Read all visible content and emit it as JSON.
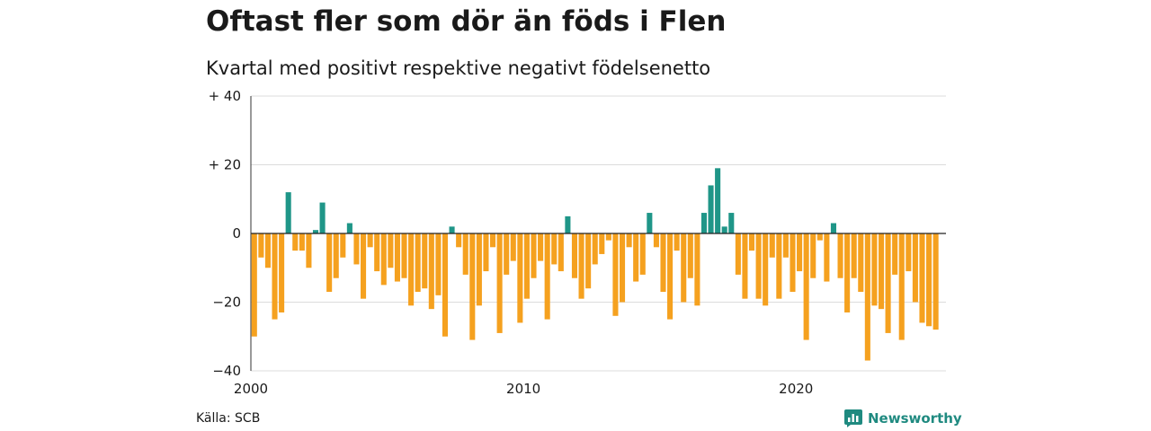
{
  "header": {
    "title": "Oftast fler som dör än föds i Flen",
    "subtitle": "Kvartal med positivt respektive negativt födelsenetto"
  },
  "footer": {
    "source": "Källa: SCB",
    "brand": "Newsworthy"
  },
  "colors": {
    "positive": "#1f9688",
    "negative": "#f5a11f",
    "grid": "#dcdcdc",
    "brand": "#1f8a80"
  },
  "chart_data": {
    "type": "bar",
    "x_start": 2000,
    "x_step": 0.25,
    "xlim": [
      2000,
      2025.5
    ],
    "ylim": [
      -40,
      40
    ],
    "y_ticks": [
      40,
      20,
      0,
      -20,
      -40
    ],
    "y_tick_labels": [
      "+ 40",
      "+ 20",
      "0",
      "−20",
      "−40"
    ],
    "x_ticks": [
      2000,
      2010,
      2020
    ],
    "x_tick_labels": [
      "2000",
      "2010",
      "2020"
    ],
    "values": [
      -30,
      -7,
      -10,
      -25,
      -23,
      12,
      -5,
      -5,
      -10,
      1,
      9,
      -17,
      -13,
      -7,
      3,
      -9,
      -19,
      -4,
      -11,
      -15,
      -10,
      -14,
      -13,
      -21,
      -17,
      -16,
      -22,
      -18,
      -30,
      2,
      -4,
      -12,
      -31,
      -21,
      -11,
      -4,
      -29,
      -12,
      -8,
      -26,
      -19,
      -13,
      -8,
      -25,
      -9,
      -11,
      5,
      -13,
      -19,
      -16,
      -9,
      -6,
      -2,
      -24,
      -20,
      -4,
      -14,
      -12,
      6,
      -4,
      -17,
      -25,
      -5,
      -20,
      -13,
      -21,
      6,
      14,
      19,
      2,
      6,
      -12,
      -19,
      -5,
      -19,
      -21,
      -7,
      -19,
      -7,
      -17,
      -11,
      -31,
      -13,
      -2,
      -14,
      3,
      -13,
      -23,
      -13,
      -17,
      -37,
      -21,
      -22,
      -29,
      -12,
      -31,
      -11,
      -20,
      -26,
      -27,
      -28
    ],
    "grid": true,
    "legend": "none"
  }
}
